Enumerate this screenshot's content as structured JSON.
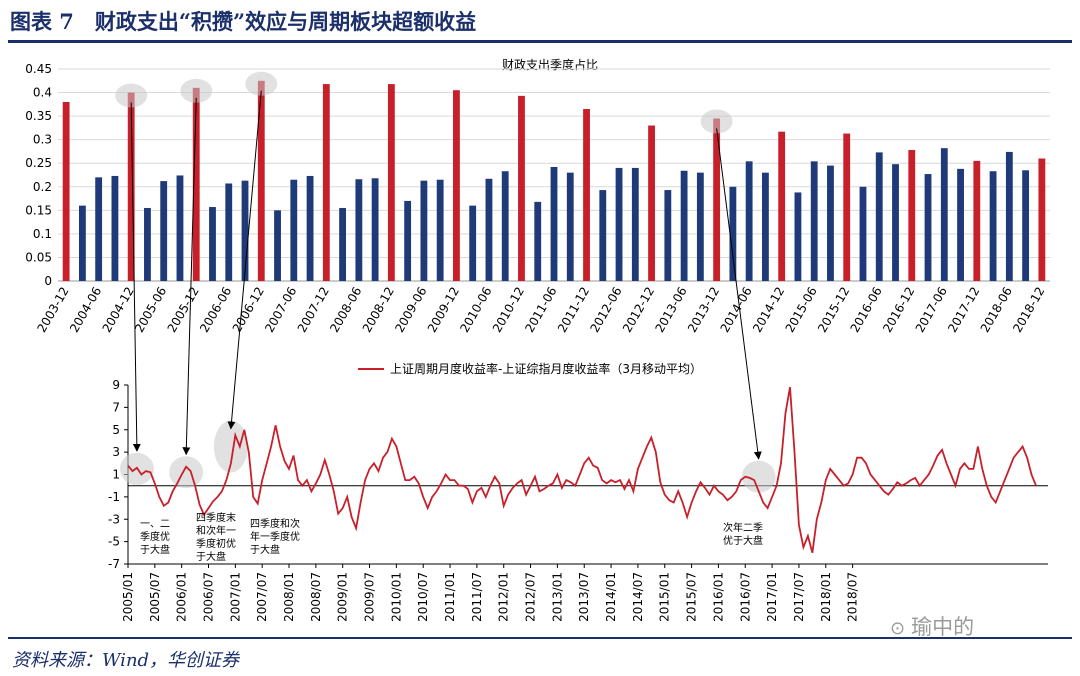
{
  "header": {
    "title": "图表 7　财政支出“积攒”效应与周期板块超额收益",
    "source": "资料来源：Wind，华创证券",
    "watermark": "瑜中的"
  },
  "colors": {
    "navy": "#1f3a78",
    "red": "#c8202a",
    "title": "#1b2f6b",
    "highlight": "#c8c8c8"
  },
  "chart_data": [
    {
      "type": "bar",
      "title": "财政支出季度占比",
      "ylim": [
        0,
        0.45
      ],
      "yticks": [
        "0.45",
        "0.4",
        "0.35",
        "0.3",
        "0.25",
        "0.2",
        "0.15",
        "0.1",
        "0.05",
        "0"
      ],
      "grid": true,
      "categories": [
        "2003-12",
        "2004-03",
        "2004-06",
        "2004-09",
        "2004-12",
        "2005-03",
        "2005-06",
        "2005-09",
        "2005-12",
        "2006-03",
        "2006-06",
        "2006-09",
        "2006-12",
        "2007-03",
        "2007-06",
        "2007-09",
        "2007-12",
        "2008-03",
        "2008-06",
        "2008-09",
        "2008-12",
        "2009-03",
        "2009-06",
        "2009-09",
        "2009-12",
        "2010-03",
        "2010-06",
        "2010-09",
        "2010-12",
        "2011-03",
        "2011-06",
        "2011-09",
        "2011-12",
        "2012-03",
        "2012-06",
        "2012-09",
        "2012-12",
        "2013-03",
        "2013-06",
        "2013-09",
        "2013-12",
        "2014-03",
        "2014-06",
        "2014-09",
        "2014-12",
        "2015-03",
        "2015-06",
        "2015-09",
        "2015-12",
        "2016-03",
        "2016-06",
        "2016-09",
        "2016-12",
        "2017-03",
        "2017-06",
        "2017-09",
        "2017-12",
        "2018-03",
        "2018-06",
        "2018-09",
        "2018-12"
      ],
      "xticks": [
        "2003-12",
        "2004-06",
        "2004-12",
        "2005-06",
        "2005-12",
        "2006-06",
        "2006-12",
        "2007-06",
        "2007-12",
        "2008-06",
        "2008-12",
        "2009-06",
        "2009-12",
        "2010-06",
        "2010-12",
        "2011-06",
        "2011-12",
        "2012-06",
        "2012-12",
        "2013-06",
        "2013-12",
        "2014-06",
        "2014-12",
        "2015-06",
        "2015-12",
        "2016-06",
        "2016-12",
        "2017-06",
        "2017-12",
        "2018-06",
        "2018-12"
      ],
      "values": [
        0.38,
        0.16,
        0.22,
        0.223,
        0.4,
        0.155,
        0.212,
        0.224,
        0.41,
        0.157,
        0.207,
        0.213,
        0.425,
        0.15,
        0.215,
        0.223,
        0.418,
        0.155,
        0.216,
        0.218,
        0.418,
        0.17,
        0.213,
        0.215,
        0.405,
        0.16,
        0.217,
        0.233,
        0.393,
        0.168,
        0.242,
        0.23,
        0.365,
        0.193,
        0.24,
        0.24,
        0.33,
        0.193,
        0.234,
        0.23,
        0.345,
        0.2,
        0.254,
        0.23,
        0.317,
        0.188,
        0.254,
        0.245,
        0.313,
        0.2,
        0.273,
        0.248,
        0.278,
        0.227,
        0.282,
        0.238,
        0.255,
        0.233,
        0.274,
        0.235,
        0.26
      ],
      "highlighted": [
        "2004-12",
        "2005-12",
        "2006-12",
        "2013-12"
      ]
    },
    {
      "type": "line",
      "series": [
        {
          "name": "上证周期月度收益率-上证综指月度收益率（3月移动平均）",
          "x_start": "2005/01",
          "values": [
            1.8,
            1.3,
            1.6,
            1.0,
            1.3,
            1.2,
            0.2,
            -1.0,
            -1.8,
            -1.5,
            -0.5,
            0.2,
            1.0,
            1.7,
            1.3,
            0,
            -1.7,
            -2.6,
            -2.0,
            -1.4,
            -1.0,
            -0.5,
            0.5,
            2.0,
            4.5,
            3.5,
            5.0,
            3.0,
            -1.0,
            -1.6,
            0.5,
            2.0,
            3.5,
            5.4,
            3.5,
            2.2,
            1.5,
            2.7,
            0.5,
            0,
            0.5,
            -0.5,
            0.2,
            1.0,
            2.3,
            1.0,
            -0.5,
            -2.5,
            -2.0,
            -1.0,
            -2.8,
            -3.8,
            -1.5,
            0.5,
            1.5,
            2.0,
            1.3,
            2.5,
            3.0,
            4.2,
            3.5,
            2.0,
            0.5,
            0.5,
            0.8,
            0.2,
            -1.0,
            -2.0,
            -1.0,
            -0.5,
            0.2,
            1.0,
            0.5,
            0.5,
            0,
            0,
            -0.3,
            -1.5,
            -0.5,
            -0.2,
            -1.0,
            0,
            0.8,
            0.2,
            -1.8,
            -0.8,
            -0.2,
            0.2,
            0.5,
            -0.8,
            0,
            0.8,
            -0.5,
            -0.3,
            0,
            0.2,
            1.0,
            -0.2,
            0.5,
            0.3,
            0,
            1.0,
            2.0,
            2.5,
            1.8,
            1.6,
            0.5,
            0.2,
            0.5,
            0.3,
            0.5,
            -0.3,
            0.5,
            -0.5,
            1.5,
            2.5,
            3.5,
            4.3,
            3.0,
            0.3,
            -0.8,
            -1.3,
            -1.5,
            -0.5,
            -1.5,
            -2.8,
            -1.5,
            -0.5,
            0.3,
            -0.2,
            -0.8,
            0,
            -0.5,
            -0.8,
            -1.3,
            -1.0,
            -0.5,
            0.5,
            0.8,
            0.7,
            0.5,
            -0.5,
            -1.5,
            -2.0,
            -1.0,
            0,
            2.0,
            6.5,
            8.8,
            3.0,
            -3.5,
            -5.5,
            -4.5,
            -6.0,
            -3.0,
            -1.5,
            0.5,
            1.5,
            1.0,
            0.5,
            0,
            0.2,
            1.0,
            2.5,
            2.5,
            2.0,
            1.0,
            0.5,
            0,
            -0.5,
            -0.8,
            -0.3,
            0.3,
            0,
            0.2,
            0.5,
            0.7,
            0,
            0.5,
            1.0,
            1.8,
            2.7,
            3.2,
            2.0,
            1.0,
            0,
            1.5,
            2.0,
            1.5,
            1.5,
            3.5,
            1.5,
            0,
            -1.0,
            -1.5,
            -0.5,
            0.5,
            1.5,
            2.5,
            3.0,
            3.5,
            2.5,
            1.0,
            0
          ]
        }
      ],
      "ylim": [
        -7,
        9
      ],
      "yticks": [
        "9",
        "7",
        "5",
        "3",
        "1",
        "-1",
        "-3",
        "-5",
        "-7"
      ],
      "xticks": [
        "2005/01",
        "2005/07",
        "2006/01",
        "2006/07",
        "2007/01",
        "2007/07",
        "2008/01",
        "2008/07",
        "2009/01",
        "2009/07",
        "2010/01",
        "2010/07",
        "2011/01",
        "2011/07",
        "2012/01",
        "2012/07",
        "2013/01",
        "2013/07",
        "2014/01",
        "2014/07",
        "2015/01",
        "2015/07",
        "2016/01",
        "2016/07",
        "2017/01",
        "2017/07",
        "2018/01",
        "2018/07"
      ],
      "annotations": [
        {
          "lines": [
            "一、二",
            "季度优",
            "于大盘"
          ]
        },
        {
          "lines": [
            "四季度末",
            "和次年一",
            "季度初优",
            "于大盘"
          ]
        },
        {
          "lines": [
            "四季度和次",
            "年一季度优",
            "于大盘"
          ]
        },
        {
          "lines": [
            "次年二季",
            "优于大盘"
          ]
        }
      ]
    }
  ]
}
